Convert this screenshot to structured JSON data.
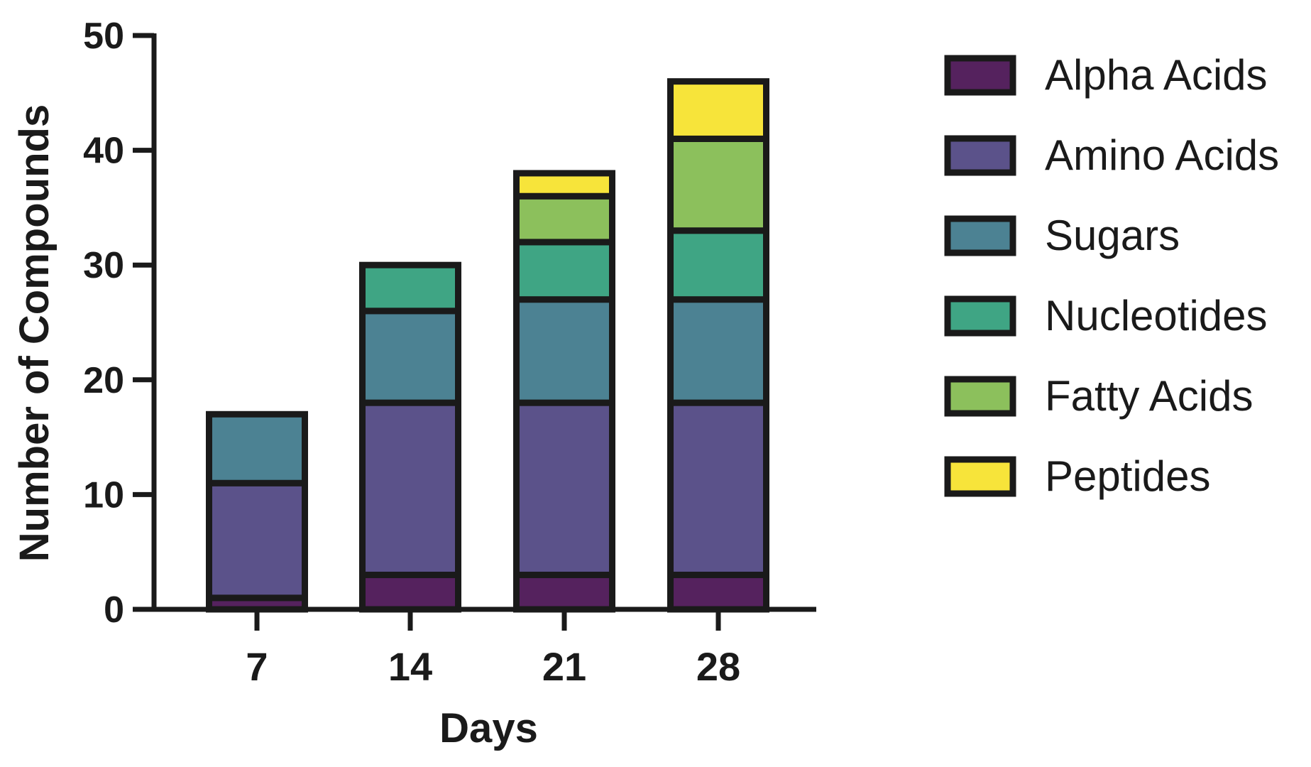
{
  "chart_data": {
    "type": "bar",
    "stacked": true,
    "categories": [
      "7",
      "14",
      "21",
      "28"
    ],
    "xlabel": "Days",
    "ylabel": "Number of Compounds",
    "ylim": [
      0,
      50
    ],
    "yticks": [
      "0",
      "10",
      "20",
      "30",
      "40",
      "50"
    ],
    "grid": false,
    "legend_position": "right",
    "series": [
      {
        "name": "Alpha Acids",
        "color": "#55225e",
        "values": [
          1,
          3,
          3,
          3
        ]
      },
      {
        "name": "Amino Acids",
        "color": "#5b528a",
        "values": [
          10,
          15,
          15,
          15
        ]
      },
      {
        "name": "Sugars",
        "color": "#4c8293",
        "values": [
          6,
          8,
          9,
          9
        ]
      },
      {
        "name": "Nucleotides",
        "color": "#3fa584",
        "values": [
          0,
          4,
          5,
          6
        ]
      },
      {
        "name": "Fatty Acids",
        "color": "#8cc05c",
        "values": [
          0,
          0,
          4,
          8
        ]
      },
      {
        "name": "Peptides",
        "color": "#f7e43a",
        "values": [
          0,
          0,
          2,
          5
        ]
      }
    ]
  }
}
